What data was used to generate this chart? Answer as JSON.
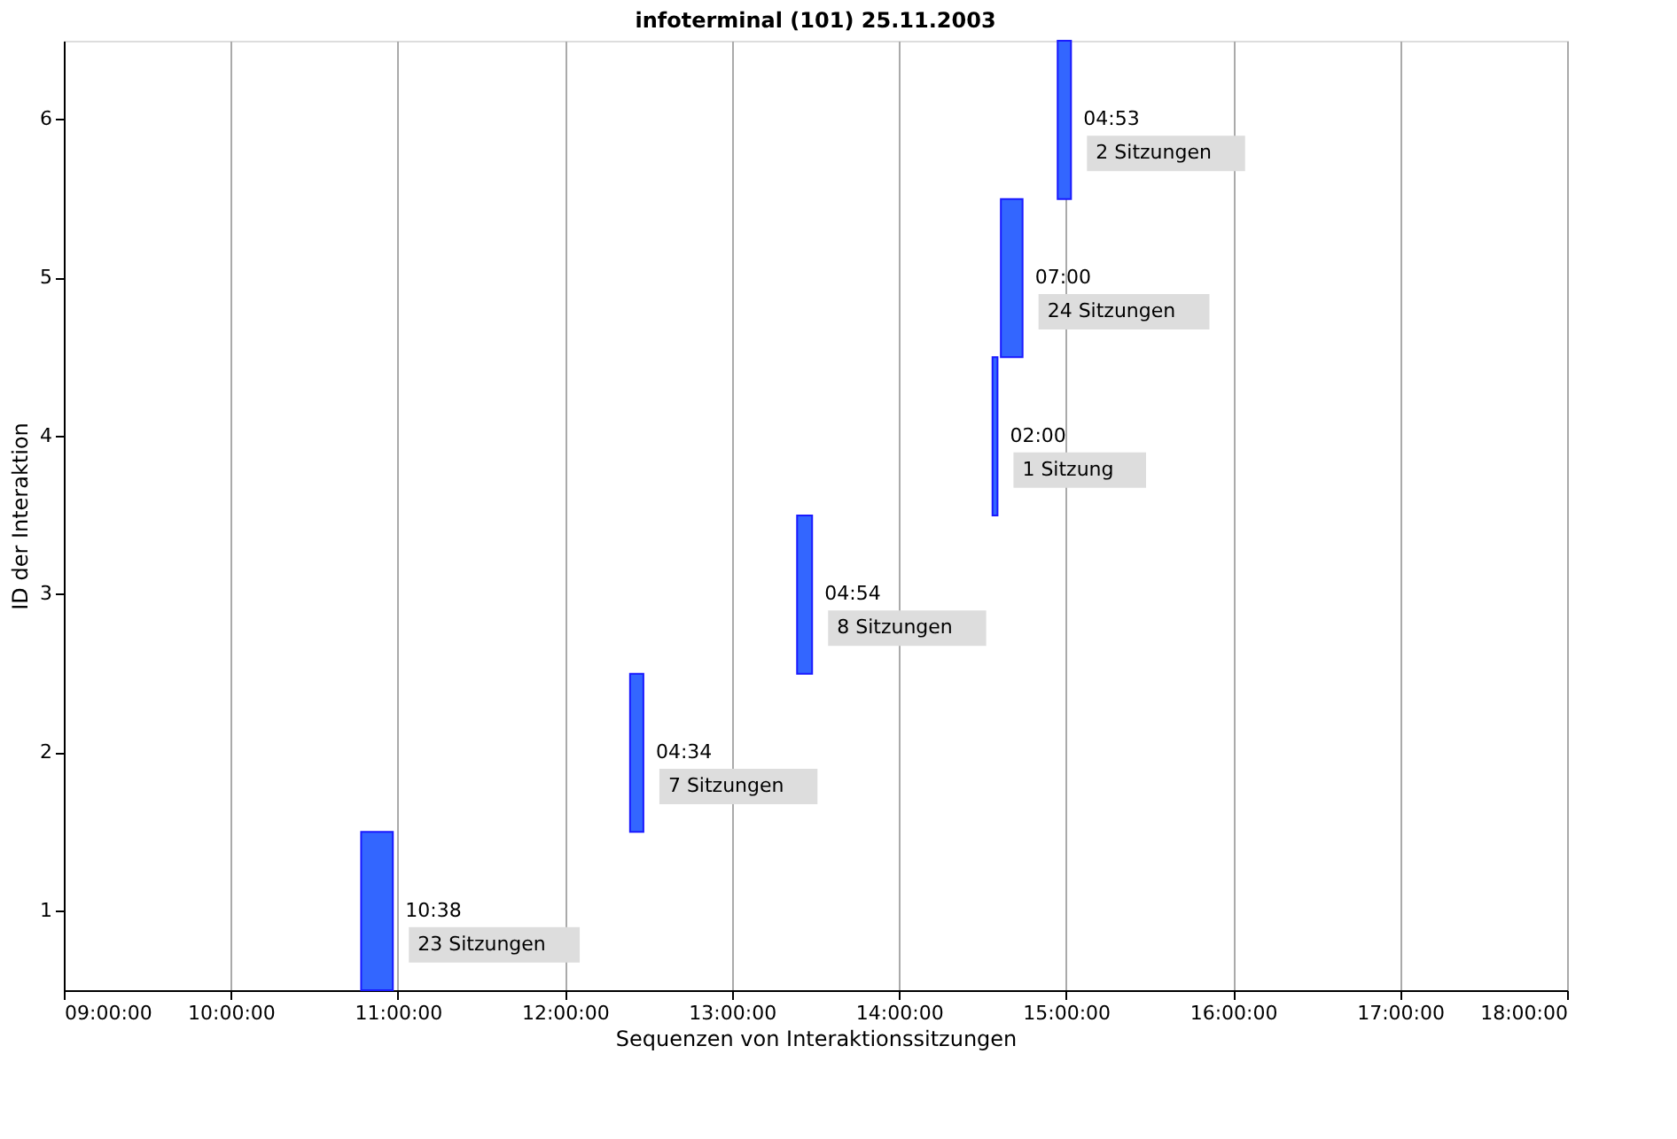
{
  "chart_data": {
    "type": "bar",
    "orientation": "horizontal",
    "title": "infoterminal (101) 25.11.2003",
    "xlabel": "Sequenzen von Interaktionssitzungen",
    "ylabel": "ID der Interaktion",
    "categories": [
      "6",
      "5",
      "4",
      "3",
      "2",
      "1"
    ],
    "base": [
      14.95,
      14.61,
      14.56,
      13.39,
      12.39,
      10.78
    ],
    "values": [
      0.08,
      0.13,
      0.03,
      0.09,
      0.08,
      0.19
    ],
    "color": "#3366ff",
    "xlim": [
      9,
      18
    ],
    "xticks": [
      {
        "value": 9,
        "label": "09:00:00"
      },
      {
        "value": 10,
        "label": "10:00:00"
      },
      {
        "value": 11,
        "label": "11:00:00"
      },
      {
        "value": 12,
        "label": "12:00:00"
      },
      {
        "value": 13,
        "label": "13:00:00"
      },
      {
        "value": 14,
        "label": "14:00:00"
      },
      {
        "value": 15,
        "label": "15:00:00"
      },
      {
        "value": 16,
        "label": "16:00:00"
      },
      {
        "value": 17,
        "label": "17:00:00"
      },
      {
        "value": 18,
        "label": "18:00:00"
      }
    ],
    "grid": "x",
    "annotations": [
      {
        "text": "04:53",
        "x": 15.03,
        "y": "6"
      },
      {
        "text": "2 Sitzungen",
        "x": 15.03,
        "y": "6"
      },
      {
        "text": "07:00",
        "x": 14.74,
        "y": "5"
      },
      {
        "text": "24 Sitzungen",
        "x": 14.74,
        "y": "5"
      },
      {
        "text": "02:00",
        "x": 14.59,
        "y": "4"
      },
      {
        "text": "1 Sitzung",
        "x": 14.59,
        "y": "4"
      },
      {
        "text": "04:54",
        "x": 13.48,
        "y": "3"
      },
      {
        "text": "8 Sitzungen",
        "x": 13.48,
        "y": "3"
      },
      {
        "text": "04:34",
        "x": 12.47,
        "y": "2"
      },
      {
        "text": "7 Sitzungen",
        "x": 12.47,
        "y": "2"
      },
      {
        "text": "10:38",
        "x": 10.97,
        "y": "1"
      },
      {
        "text": "23 Sitzungen",
        "x": 10.97,
        "y": "1"
      }
    ]
  }
}
